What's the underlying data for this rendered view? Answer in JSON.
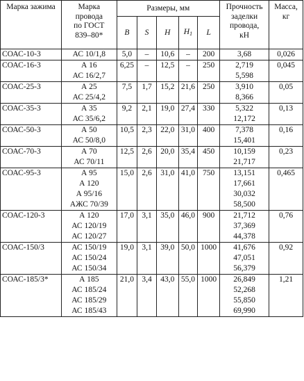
{
  "headers": {
    "clamp": "Марка зажима",
    "wire": [
      "Марка",
      "провода",
      "по ГОСТ",
      "839–80*"
    ],
    "dimensions_group": "Размеры, мм",
    "dimension_cols": {
      "B": "B",
      "S": "S",
      "H": "H",
      "H1_base": "H",
      "H1_sub": "1",
      "L": "L"
    },
    "strength": [
      "Прочность",
      "заделки",
      "провода,",
      "кН"
    ],
    "mass": [
      "Масса,",
      "кг"
    ]
  },
  "rows": [
    {
      "clamp": "СОАС-10-3",
      "wires": [
        "АС 10/1,8"
      ],
      "B": "5,0",
      "S": "–",
      "H": "10,6",
      "H1": "–",
      "L": "200",
      "strength": [
        "3,68"
      ],
      "mass": "0,026"
    },
    {
      "clamp": "СОАС-16-3",
      "wires": [
        "А 16",
        "АС 16/2,7"
      ],
      "B": "6,25",
      "S": "–",
      "H": "12,5",
      "H1": "–",
      "L": "250",
      "strength": [
        "2,719",
        "5,598"
      ],
      "mass": "0,045"
    },
    {
      "clamp": "СОАС-25-3",
      "wires": [
        "А 25",
        "АС 25/4,2"
      ],
      "B": "7,5",
      "S": "1,7",
      "H": "15,2",
      "H1": "21,6",
      "L": "250",
      "strength": [
        "3,910",
        "8,366"
      ],
      "mass": "0,05"
    },
    {
      "clamp": "СОАС-35-3",
      "wires": [
        "А 35",
        "АС 35/6,2"
      ],
      "B": "9,2",
      "S": "2,1",
      "H": "19,0",
      "H1": "27,4",
      "L": "330",
      "strength": [
        "5,322",
        "12,172"
      ],
      "mass": "0,13"
    },
    {
      "clamp": "СОАС-50-3",
      "wires": [
        "А 50",
        "АС 50/8,0"
      ],
      "B": "10,5",
      "S": "2,3",
      "H": "22,0",
      "H1": "31,0",
      "L": "400",
      "strength": [
        "7,378",
        "15,401"
      ],
      "mass": "0,16"
    },
    {
      "clamp": "СОАС-70-3",
      "wires": [
        "А 70",
        "АС 70/11"
      ],
      "B": "12,5",
      "S": "2,6",
      "H": "20,0",
      "H1": "35,4",
      "L": "450",
      "strength": [
        "10,159",
        "21,717"
      ],
      "mass": "0,23"
    },
    {
      "clamp": "СОАС-95-3",
      "wires": [
        "А 95",
        "А 120",
        "А 95/16",
        "АЖС 70/39"
      ],
      "B": "15,0",
      "S": "2,6",
      "H": "31,0",
      "H1": "41,0",
      "L": "750",
      "strength": [
        "13,151",
        "17,661",
        "30,032",
        "58,500"
      ],
      "mass": "0,465"
    },
    {
      "clamp": "СОАС-120-3",
      "wires": [
        "А 120",
        "АС 120/19",
        "АС 120/27"
      ],
      "B": "17,0",
      "S": "3,1",
      "H": "35,0",
      "H1": "46,0",
      "L": "900",
      "strength": [
        "21,712",
        "37,369",
        "44,378"
      ],
      "mass": "0,76"
    },
    {
      "clamp": "СОАС-150/3",
      "wires": [
        "АС 150/19",
        "АС 150/24",
        "АС 150/34"
      ],
      "B": "19,0",
      "S": "3,1",
      "H": "39,0",
      "H1": "50,0",
      "L": "1000",
      "strength": [
        "41,676",
        "47,051",
        "56,379"
      ],
      "mass": "0,92"
    },
    {
      "clamp": "СОАС-185/3*",
      "wires": [
        "А 185",
        "АС 185/24",
        "АС 185/29",
        "АС 185/43"
      ],
      "B": "21,0",
      "S": "3,4",
      "H": "43,0",
      "H1": "55,0",
      "L": "1000",
      "strength": [
        "26,849",
        "52,268",
        "55,850",
        "69,990"
      ],
      "mass": "1,21"
    }
  ]
}
